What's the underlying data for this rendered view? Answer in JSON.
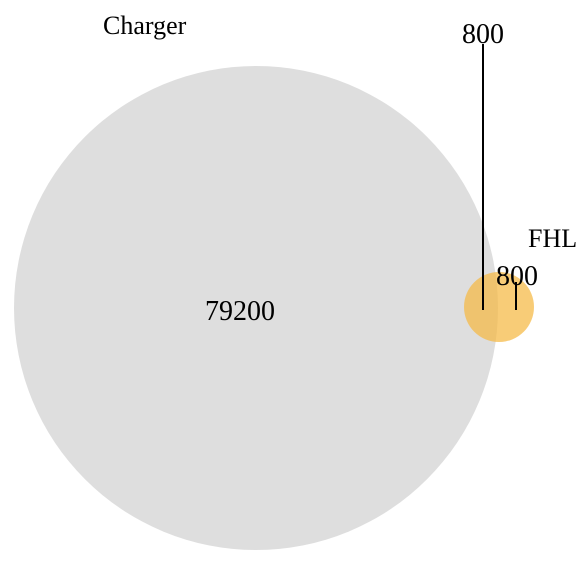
{
  "chart_data": {
    "type": "venn",
    "sets": [
      {
        "name": "Charger",
        "only_count": "79200",
        "color": "#d9d9d9"
      },
      {
        "name": "FHL",
        "only_count": "800",
        "color": "#f5b942"
      }
    ],
    "intersection_count": "800"
  }
}
